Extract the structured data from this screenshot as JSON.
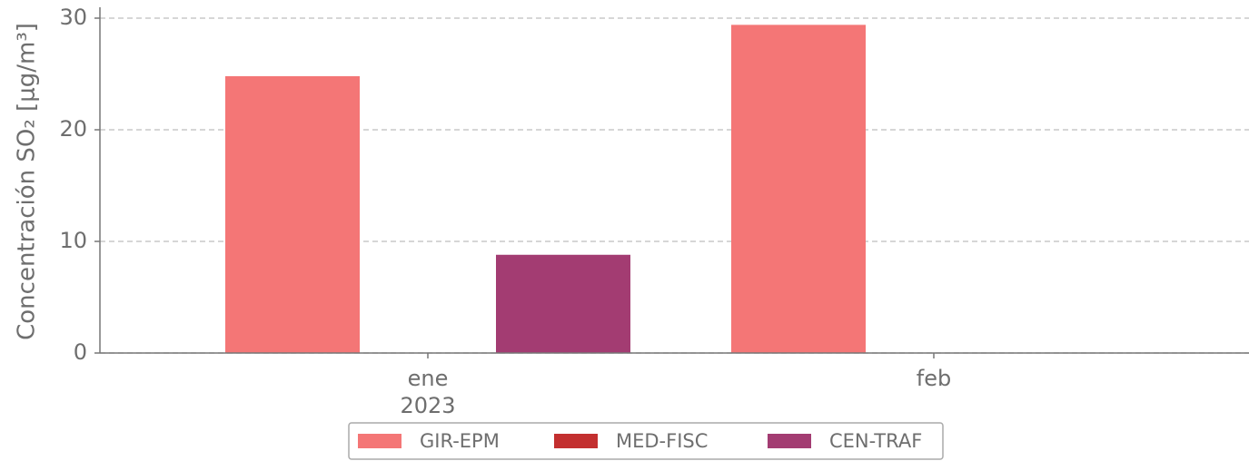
{
  "chart_data": {
    "type": "bar",
    "ylabel": "Concentración SO₂ [μg/m³]",
    "categories": [
      "ene",
      "feb"
    ],
    "x_year_label": "2023",
    "series": [
      {
        "name": "GIR-EPM",
        "color": "#f47676",
        "values": [
          24.8,
          29.4
        ]
      },
      {
        "name": "MED-FISC",
        "color": "#c32f2f",
        "values": [
          null,
          null
        ]
      },
      {
        "name": "CEN-TRAF",
        "color": "#a33c72",
        "values": [
          8.8,
          null
        ]
      }
    ],
    "ylim": [
      0,
      30
    ],
    "yticks": [
      0,
      10,
      20,
      30
    ],
    "grid": true,
    "legend": "lower center"
  }
}
